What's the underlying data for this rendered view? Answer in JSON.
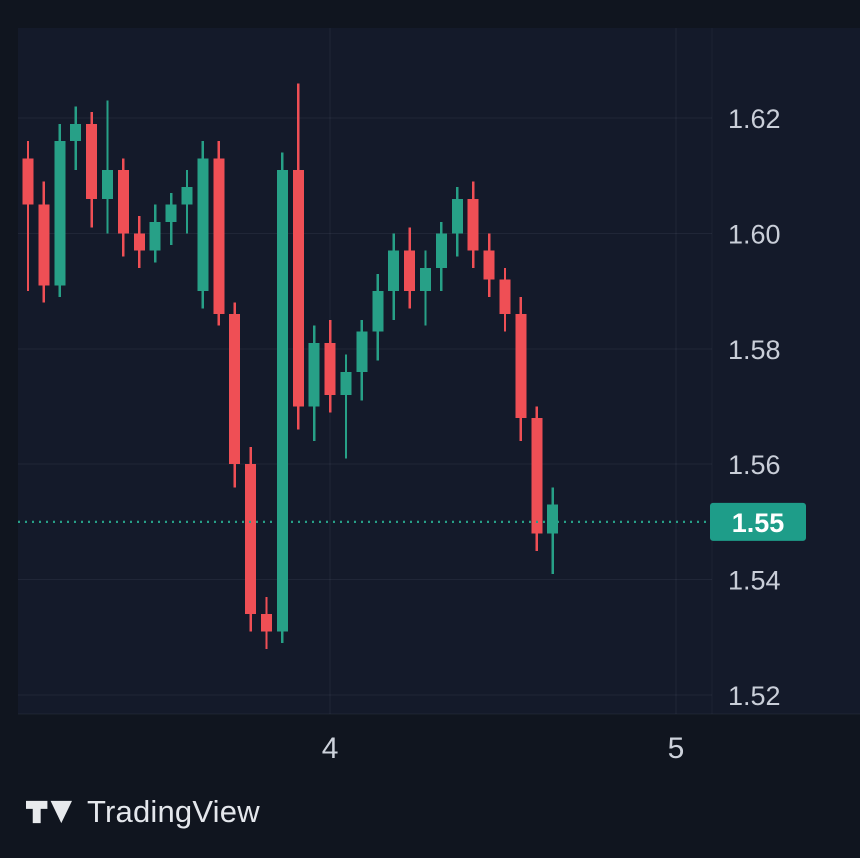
{
  "chart_data": {
    "type": "candlestick",
    "grid": true,
    "legend": false,
    "ylim": [
      1.515,
      1.63
    ],
    "y_axis": {
      "ticks": [
        {
          "label": "1.62",
          "price": 1.62
        },
        {
          "label": "1.60",
          "price": 1.6
        },
        {
          "label": "1.58",
          "price": 1.58
        },
        {
          "label": "1.56",
          "price": 1.56
        },
        {
          "label": "1.54",
          "price": 1.54
        },
        {
          "label": "1.52",
          "price": 1.52
        }
      ]
    },
    "x_axis": {
      "ticks": [
        {
          "label": "4",
          "index": 19
        },
        {
          "label": "5",
          "index": 40.75
        }
      ]
    },
    "current_price": {
      "label": "1.55",
      "price": 1.55
    },
    "colors": {
      "up": "#27a087",
      "down": "#ef4f55",
      "price_line": "#27a087",
      "badge_bg": "#1e9d89",
      "badge_text": "#ffffff",
      "grid": "rgba(197,205,220,0.07)",
      "axis_text": "#c9ced8",
      "pane_bg": "#141a2a",
      "outer_bg": "#10151f"
    },
    "candles": [
      {
        "o": 1.613,
        "h": 1.616,
        "l": 1.59,
        "c": 1.605
      },
      {
        "o": 1.605,
        "h": 1.609,
        "l": 1.588,
        "c": 1.591
      },
      {
        "o": 1.591,
        "h": 1.619,
        "l": 1.589,
        "c": 1.616
      },
      {
        "o": 1.616,
        "h": 1.622,
        "l": 1.611,
        "c": 1.619
      },
      {
        "o": 1.619,
        "h": 1.621,
        "l": 1.601,
        "c": 1.606
      },
      {
        "o": 1.606,
        "h": 1.623,
        "l": 1.6,
        "c": 1.611
      },
      {
        "o": 1.611,
        "h": 1.613,
        "l": 1.596,
        "c": 1.6
      },
      {
        "o": 1.6,
        "h": 1.603,
        "l": 1.594,
        "c": 1.597
      },
      {
        "o": 1.597,
        "h": 1.605,
        "l": 1.595,
        "c": 1.602
      },
      {
        "o": 1.602,
        "h": 1.607,
        "l": 1.598,
        "c": 1.605
      },
      {
        "o": 1.605,
        "h": 1.611,
        "l": 1.6,
        "c": 1.608
      },
      {
        "o": 1.59,
        "h": 1.616,
        "l": 1.587,
        "c": 1.613
      },
      {
        "o": 1.613,
        "h": 1.616,
        "l": 1.584,
        "c": 1.586
      },
      {
        "o": 1.586,
        "h": 1.588,
        "l": 1.556,
        "c": 1.56
      },
      {
        "o": 1.56,
        "h": 1.563,
        "l": 1.531,
        "c": 1.534
      },
      {
        "o": 1.534,
        "h": 1.537,
        "l": 1.528,
        "c": 1.531
      },
      {
        "o": 1.531,
        "h": 1.614,
        "l": 1.529,
        "c": 1.611
      },
      {
        "o": 1.611,
        "h": 1.626,
        "l": 1.566,
        "c": 1.57
      },
      {
        "o": 1.57,
        "h": 1.584,
        "l": 1.564,
        "c": 1.581
      },
      {
        "o": 1.581,
        "h": 1.585,
        "l": 1.569,
        "c": 1.572
      },
      {
        "o": 1.572,
        "h": 1.579,
        "l": 1.561,
        "c": 1.576
      },
      {
        "o": 1.576,
        "h": 1.585,
        "l": 1.571,
        "c": 1.583
      },
      {
        "o": 1.583,
        "h": 1.593,
        "l": 1.578,
        "c": 1.59
      },
      {
        "o": 1.59,
        "h": 1.6,
        "l": 1.585,
        "c": 1.597
      },
      {
        "o": 1.597,
        "h": 1.601,
        "l": 1.587,
        "c": 1.59
      },
      {
        "o": 1.59,
        "h": 1.597,
        "l": 1.584,
        "c": 1.594
      },
      {
        "o": 1.594,
        "h": 1.602,
        "l": 1.59,
        "c": 1.6
      },
      {
        "o": 1.6,
        "h": 1.608,
        "l": 1.596,
        "c": 1.606
      },
      {
        "o": 1.606,
        "h": 1.609,
        "l": 1.594,
        "c": 1.597
      },
      {
        "o": 1.597,
        "h": 1.6,
        "l": 1.589,
        "c": 1.592
      },
      {
        "o": 1.592,
        "h": 1.594,
        "l": 1.583,
        "c": 1.586
      },
      {
        "o": 1.586,
        "h": 1.589,
        "l": 1.564,
        "c": 1.568
      },
      {
        "o": 1.568,
        "h": 1.57,
        "l": 1.545,
        "c": 1.548
      },
      {
        "o": 1.548,
        "h": 1.556,
        "l": 1.541,
        "c": 1.553
      }
    ]
  },
  "footer": {
    "brand": "TradingView",
    "logo_icon": "tradingview-logo-icon"
  }
}
